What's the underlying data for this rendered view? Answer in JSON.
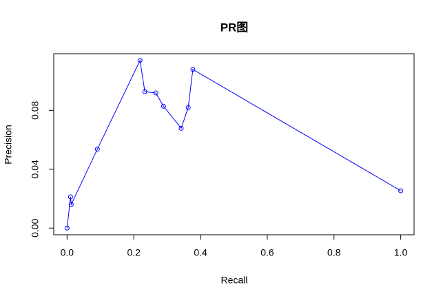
{
  "chart_data": {
    "type": "line",
    "title": "PR图",
    "x_label": "Recall",
    "y_label": "Precision",
    "x": [
      0,
      0.0103,
      0.0124,
      0.0907,
      0.2186,
      0.233,
      0.266,
      0.289,
      0.342,
      0.363,
      0.377,
      1.0
    ],
    "series": [
      {
        "name": null,
        "color": "#0000ff",
        "values": [
          0,
          0.0212,
          0.016,
          0.0536,
          0.1139,
          0.0927,
          0.0918,
          0.0828,
          0.0678,
          0.0819,
          0.1078,
          0.0254
        ]
      }
    ],
    "xlim": [
      -0.04,
      1.04
    ],
    "ylim": [
      -0.00456,
      0.1185
    ],
    "xticks": [
      {
        "value": 0,
        "label": "0.0"
      },
      0.2,
      0.4,
      0.6,
      0.8,
      {
        "value": 1,
        "label": "1.0"
      }
    ],
    "yticks": [
      {
        "value": 0,
        "label": "0.00"
      },
      {
        "value": 0.04,
        "label": "0.04"
      },
      {
        "value": 0.08,
        "label": "0.08"
      }
    ],
    "grid": false
  }
}
